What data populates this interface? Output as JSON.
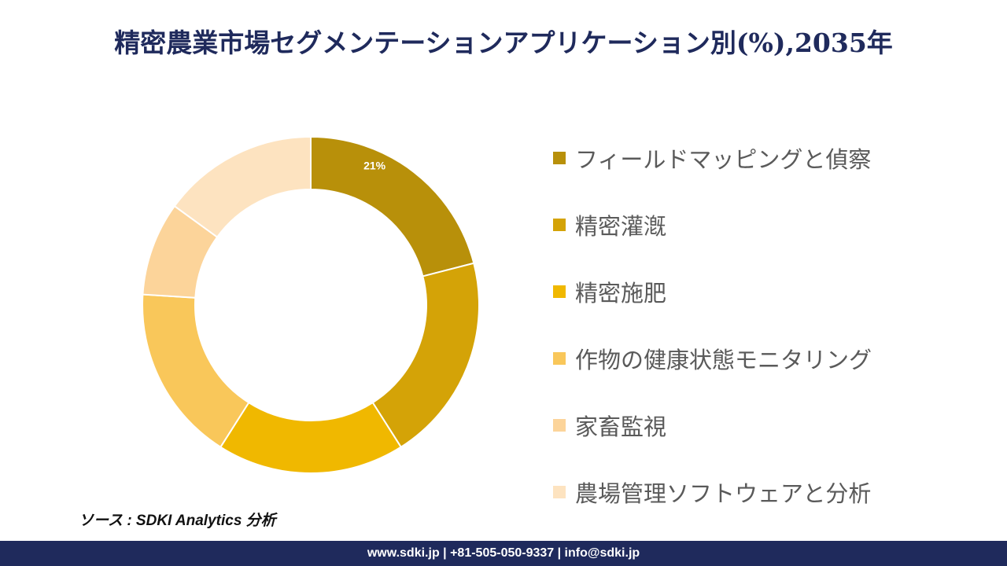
{
  "chart_data": {
    "type": "pie",
    "variant": "donut",
    "title": "精密農業市場セグメンテーションアプリケーション別(%),2035年",
    "categories": [
      "フィールドマッピングと偵察",
      "精密灌漑",
      "精密施肥",
      "作物の健康状態モニタリング",
      "家畜監視",
      "農場管理ソフトウェアと分析"
    ],
    "values": [
      21,
      20,
      18,
      17,
      9,
      15
    ],
    "data_labels": [
      "21%",
      "",
      "",
      "",
      "",
      ""
    ],
    "colors": [
      "#B8900A",
      "#D4A307",
      "#F0B800",
      "#F9C75A",
      "#FCD49A",
      "#FDE3C0"
    ],
    "legend_position": "right"
  },
  "source": "ソース : SDKI Analytics 分析",
  "footer": "www.sdki.jp | +81-505-050-9337 | info@sdki.jp"
}
